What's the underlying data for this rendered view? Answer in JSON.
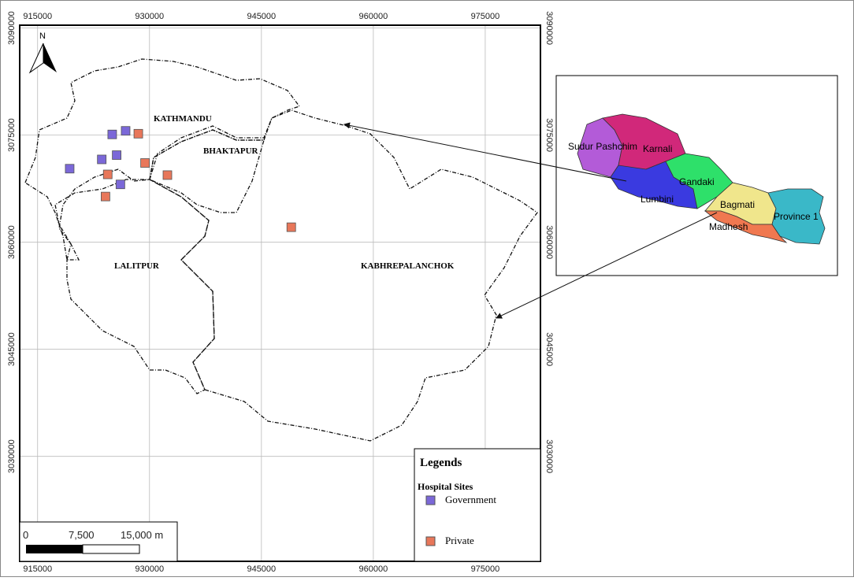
{
  "map": {
    "north_label": "N",
    "xlim": [
      912600,
      982400
    ],
    "ylim": [
      3015300,
      3090400
    ],
    "xticks": [
      915000,
      930000,
      945000,
      960000,
      975000
    ],
    "yticks": [
      3030000,
      3045000,
      3060000,
      3075000,
      3090000
    ],
    "districts": [
      "KATHMANDU",
      "BHAKTAPUR",
      "LALITPUR",
      "KABHREPALANCHOK"
    ],
    "hospital_sites": [
      {
        "name": "Government",
        "color": "#7b68d8",
        "x": [
          919300,
          923600,
          925000,
          925600,
          926800,
          926100
        ],
        "y": [
          3070300,
          3071600,
          3075100,
          3072200,
          3075600,
          3068100
        ]
      },
      {
        "name": "Private",
        "color": "#e8775a",
        "x": [
          928500,
          929400,
          932400,
          924400,
          924100,
          949000
        ],
        "y": [
          3075200,
          3071100,
          3069400,
          3069500,
          3066400,
          3062100
        ]
      }
    ],
    "legend": {
      "title": "Legends",
      "subtitle": "Hospital Sites"
    },
    "scale_bar": {
      "labels": [
        "0",
        "7,500",
        "15,000 m"
      ]
    }
  },
  "inset": {
    "provinces": [
      "Sudur Pashchim",
      "Karnali",
      "Gandaki",
      "Lumbini",
      "Bagmati",
      "Province 1",
      "Madhesh"
    ]
  }
}
